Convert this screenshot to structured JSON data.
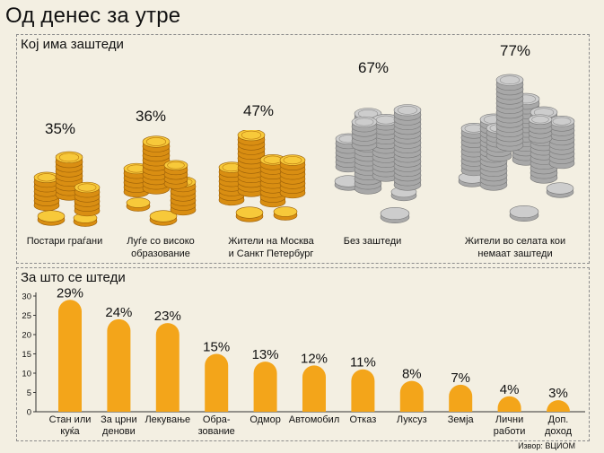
{
  "title": "Од денес за утре",
  "section1": {
    "title": "Кој има заштеди",
    "groups": [
      {
        "pct": "35%",
        "label_lines": [
          "Постари граѓани"
        ],
        "style": "gold"
      },
      {
        "pct": "36%",
        "label_lines": [
          "Луѓе со високо",
          "образование"
        ],
        "style": "gold"
      },
      {
        "pct": "47%",
        "label_lines": [
          "Жители на Москва",
          "и Санкт Петербург"
        ],
        "style": "gold"
      },
      {
        "pct": "67%",
        "label_lines": [
          "Без заштеди"
        ],
        "style": "grey"
      },
      {
        "pct": "77%",
        "label_lines": [
          "Жители во селата кои",
          "немаат заштеди"
        ],
        "style": "grey"
      }
    ]
  },
  "section2": {
    "title": "За што се штеди"
  },
  "chart_data": {
    "type": "bar",
    "title": "За што се штеди",
    "ylim": [
      0,
      30
    ],
    "yticks": [
      0,
      5,
      10,
      15,
      20,
      25,
      30
    ],
    "categories": [
      [
        "Стан или",
        "куќа"
      ],
      [
        "За црни",
        "денови"
      ],
      [
        "Лекување"
      ],
      [
        "Обра-",
        "зование"
      ],
      [
        "Одмор"
      ],
      [
        "Автомобил"
      ],
      [
        "Отказ"
      ],
      [
        "Луксуз"
      ],
      [
        "Земја"
      ],
      [
        "Лични",
        "работи"
      ],
      [
        "Доп.",
        "доход"
      ]
    ],
    "values": [
      29,
      24,
      23,
      15,
      13,
      12,
      11,
      8,
      7,
      4,
      3
    ],
    "value_labels": [
      "29%",
      "24%",
      "23%",
      "15%",
      "13%",
      "12%",
      "11%",
      "8%",
      "7%",
      "4%",
      "3%"
    ],
    "bar_color": "#f3a51a"
  },
  "source": "Извор: ВЦИОМ"
}
